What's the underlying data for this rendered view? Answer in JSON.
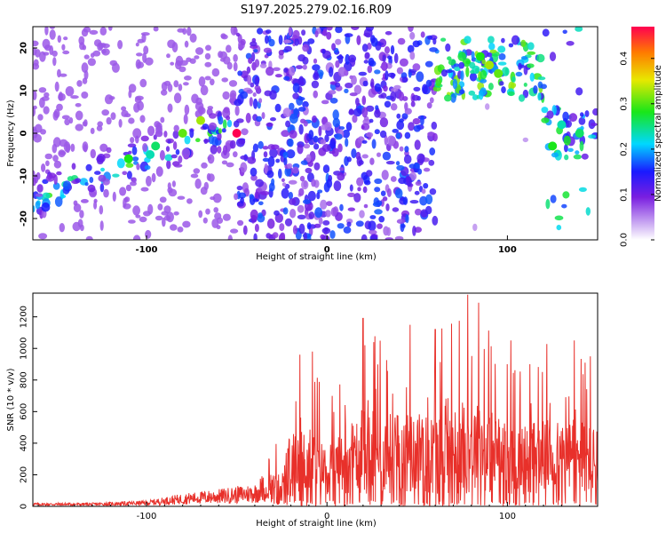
{
  "title": "S197.2025.279.02.16.R09",
  "chart_data": [
    {
      "type": "heatmap",
      "xlabel": "Height of straight line (km)",
      "ylabel": "Frequency (Hz)",
      "xlim": [
        -163,
        150
      ],
      "ylim": [
        -25,
        25
      ],
      "x_ticks": [
        -100,
        0,
        100
      ],
      "y_ticks": [
        -20,
        -10,
        0,
        10,
        20
      ],
      "colorbar": {
        "label": "Normalized spectral amplitude",
        "range": [
          0,
          0.47
        ],
        "ticks": [
          0.0,
          0.1,
          0.2,
          0.3,
          0.4
        ],
        "colormap": "white-purple-blue-cyan-green-yellow-red"
      },
      "features": [
        {
          "description": "diagonal band",
          "x_range": [
            -160,
            -50
          ],
          "freq_range": [
            -15,
            2
          ]
        },
        {
          "description": "vertical streaks",
          "x_range": [
            -50,
            60
          ],
          "freq_range": [
            -25,
            25
          ]
        },
        {
          "description": "high-frequency cluster",
          "x_range": [
            60,
            120
          ],
          "freq_range": [
            10,
            20
          ]
        },
        {
          "description": "low-frequency cluster",
          "x_range": [
            120,
            150
          ],
          "freq_range": [
            -5,
            5
          ]
        }
      ]
    },
    {
      "type": "line",
      "xlabel": "Height of straight line (km)",
      "ylabel": "SNR (10 * v/v)",
      "xlim": [
        -163,
        150
      ],
      "ylim": [
        0,
        1350
      ],
      "x_ticks": [
        -100,
        0,
        100
      ],
      "y_ticks": [
        0,
        200,
        400,
        600,
        800,
        1000,
        1200
      ],
      "color": "#e8302a",
      "envelope": [
        {
          "x": -163,
          "baseline": 10,
          "peak": 30
        },
        {
          "x": -130,
          "baseline": 10,
          "peak": 30
        },
        {
          "x": -100,
          "baseline": 15,
          "peak": 50
        },
        {
          "x": -80,
          "baseline": 30,
          "peak": 110
        },
        {
          "x": -60,
          "baseline": 40,
          "peak": 150
        },
        {
          "x": -40,
          "baseline": 50,
          "peak": 200
        },
        {
          "x": -30,
          "baseline": 60,
          "peak": 390
        },
        {
          "x": -20,
          "baseline": 80,
          "peak": 460
        },
        {
          "x": -15,
          "baseline": 120,
          "peak": 960
        },
        {
          "x": -8,
          "baseline": 120,
          "peak": 980
        },
        {
          "x": 0,
          "baseline": 150,
          "peak": 650
        },
        {
          "x": 20,
          "baseline": 150,
          "peak": 1190
        },
        {
          "x": 40,
          "baseline": 150,
          "peak": 1150
        },
        {
          "x": 60,
          "baseline": 150,
          "peak": 1120
        },
        {
          "x": 78,
          "baseline": 150,
          "peak": 1340
        },
        {
          "x": 85,
          "baseline": 150,
          "peak": 1290
        },
        {
          "x": 100,
          "baseline": 150,
          "peak": 900
        },
        {
          "x": 115,
          "baseline": 150,
          "peak": 1050
        },
        {
          "x": 135,
          "baseline": 150,
          "peak": 1050
        },
        {
          "x": 150,
          "baseline": 150,
          "peak": 950
        }
      ],
      "peaks": [
        {
          "x": -15,
          "y": 960
        },
        {
          "x": -8,
          "y": 980
        },
        {
          "x": 20,
          "y": 1190
        },
        {
          "x": 26,
          "y": 1040
        },
        {
          "x": 46,
          "y": 1150
        },
        {
          "x": 60,
          "y": 1120
        },
        {
          "x": 78,
          "y": 1340
        },
        {
          "x": 84,
          "y": 1290
        },
        {
          "x": 100,
          "y": 900
        },
        {
          "x": 102,
          "y": 1050
        },
        {
          "x": 137,
          "y": 1050
        },
        {
          "x": 146,
          "y": 950
        }
      ]
    }
  ]
}
